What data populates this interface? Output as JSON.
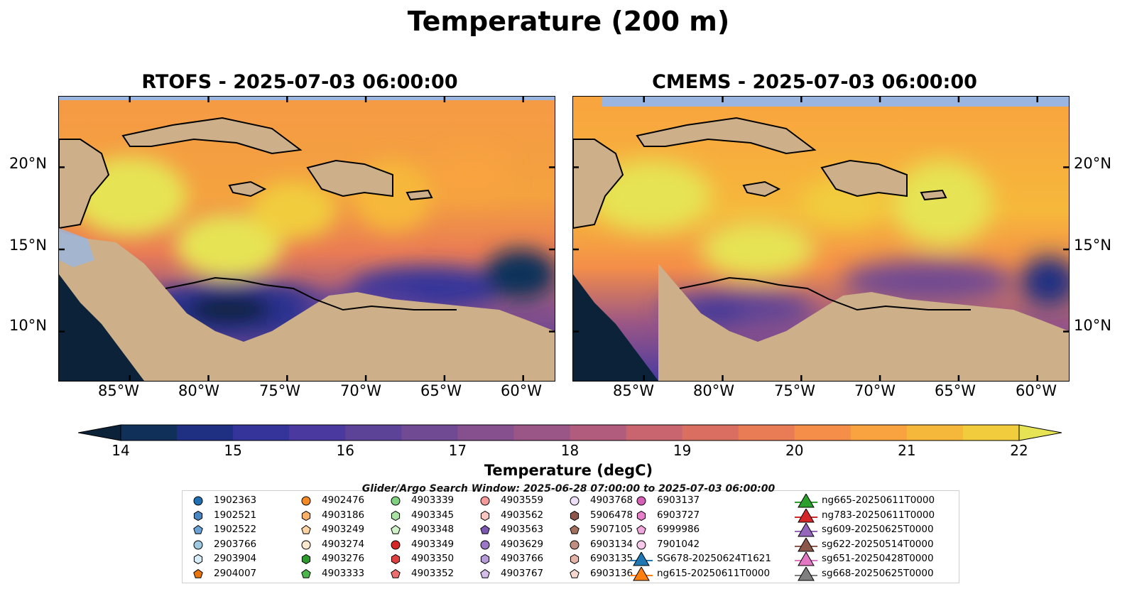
{
  "title": "Temperature (200 m)",
  "panels": [
    {
      "id": "rtofs",
      "title": "RTOFS - 2025-07-03 06:00:00"
    },
    {
      "id": "cmems",
      "title": "CMEMS - 2025-07-03 06:00:00"
    }
  ],
  "map_extent": {
    "lon": [
      -89.5,
      -58
    ],
    "lat": [
      7,
      24.3
    ]
  },
  "axes": {
    "lon_ticks": [
      {
        "value": -85,
        "label": "85°W"
      },
      {
        "value": -80,
        "label": "80°W"
      },
      {
        "value": -75,
        "label": "75°W"
      },
      {
        "value": -70,
        "label": "70°W"
      },
      {
        "value": -65,
        "label": "65°W"
      },
      {
        "value": -60,
        "label": "60°W"
      }
    ],
    "lat_ticks": [
      {
        "value": 20,
        "label": "20°N"
      },
      {
        "value": 15,
        "label": "15°N"
      },
      {
        "value": 10,
        "label": "10°N"
      }
    ]
  },
  "colorbar": {
    "label": "Temperature (degC)",
    "range": [
      14,
      22
    ],
    "ticks": [
      "14",
      "15",
      "16",
      "17",
      "18",
      "19",
      "20",
      "21",
      "22"
    ],
    "colors": [
      "#0b2238",
      "#10305a",
      "#1f2f82",
      "#35349a",
      "#4a3aa0",
      "#5c4398",
      "#704a93",
      "#85508d",
      "#9a5686",
      "#b15b7d",
      "#c8656f",
      "#da6f61",
      "#e97b55",
      "#f48e49",
      "#f8a33f",
      "#f6b83b",
      "#f1cd3e",
      "#e6e454"
    ],
    "land_color": "#cdb08a",
    "water_mask_color": "#9ab6e0"
  },
  "search_window": "Glider/Argo Search Window: 2025-06-28 07:00:00 to 2025-07-03 06:00:00",
  "legend": {
    "columns": [
      [
        {
          "label": "1902363",
          "marker": "circle",
          "color": "#1f6fb3"
        },
        {
          "label": "1902521",
          "marker": "hexagon",
          "color": "#4a86c2"
        },
        {
          "label": "1902522",
          "marker": "pentagon",
          "color": "#6ba3d6"
        },
        {
          "label": "2903766",
          "marker": "circle",
          "color": "#9ecae1"
        },
        {
          "label": "2903904",
          "marker": "hexagon",
          "color": "#d7ecf9"
        },
        {
          "label": "2904007",
          "marker": "pentagon",
          "color": "#e8750e"
        }
      ],
      [
        {
          "label": "4902476",
          "marker": "circle",
          "color": "#f58a24"
        },
        {
          "label": "4903186",
          "marker": "hexagon",
          "color": "#fbb069"
        },
        {
          "label": "4903249",
          "marker": "pentagon",
          "color": "#fdd3a4"
        },
        {
          "label": "4903274",
          "marker": "circle",
          "color": "#fde7cf"
        },
        {
          "label": "4903276",
          "marker": "hexagon",
          "color": "#2d9a2d"
        },
        {
          "label": "4903333",
          "marker": "pentagon",
          "color": "#4cb84c"
        }
      ],
      [
        {
          "label": "4903339",
          "marker": "circle",
          "color": "#7fd07f"
        },
        {
          "label": "4903345",
          "marker": "hexagon",
          "color": "#a9e3a3"
        },
        {
          "label": "4903348",
          "marker": "pentagon",
          "color": "#d0f2c9"
        },
        {
          "label": "4903349",
          "marker": "circle",
          "color": "#d62728"
        },
        {
          "label": "4903350",
          "marker": "hexagon",
          "color": "#e0403f"
        },
        {
          "label": "4903352",
          "marker": "pentagon",
          "color": "#ed6e6e"
        }
      ],
      [
        {
          "label": "4903559",
          "marker": "circle",
          "color": "#f59a98"
        },
        {
          "label": "4903562",
          "marker": "hexagon",
          "color": "#fcc6c2"
        },
        {
          "label": "4903563",
          "marker": "pentagon",
          "color": "#7d58b3"
        },
        {
          "label": "4903629",
          "marker": "circle",
          "color": "#9a78c6"
        },
        {
          "label": "4903766",
          "marker": "hexagon",
          "color": "#b79ad8"
        },
        {
          "label": "4903767",
          "marker": "pentagon",
          "color": "#d4bfe9"
        }
      ],
      [
        {
          "label": "4903768",
          "marker": "circle",
          "color": "#ecdff7"
        },
        {
          "label": "5906478",
          "marker": "hexagon",
          "color": "#8c564b"
        },
        {
          "label": "5907105",
          "marker": "pentagon",
          "color": "#a3705f"
        },
        {
          "label": "6903134",
          "marker": "circle",
          "color": "#c08e80"
        },
        {
          "label": "6903135",
          "marker": "hexagon",
          "color": "#e2b3a6"
        },
        {
          "label": "6903136",
          "marker": "pentagon",
          "color": "#f6d8cf"
        }
      ],
      [
        {
          "label": "6903137",
          "marker": "circle",
          "color": "#d65fb7"
        },
        {
          "label": "6903727",
          "marker": "hexagon",
          "color": "#e77fcb"
        },
        {
          "label": "6999986",
          "marker": "pentagon",
          "color": "#f2a7dc"
        },
        {
          "label": "7901042",
          "marker": "circle",
          "color": "#f8c9ea"
        },
        {
          "label": "SG678-20250624T1621",
          "marker": "triangle",
          "color": "#1f77b4"
        },
        {
          "label": "ng615-20250611T0000",
          "marker": "triangle",
          "color": "#ff7f0e"
        }
      ],
      [
        {
          "label": "ng665-20250611T0000",
          "marker": "triangle",
          "color": "#2ca02c"
        },
        {
          "label": "ng783-20250611T0000",
          "marker": "triangle",
          "color": "#d62728"
        },
        {
          "label": "sg609-20250625T0000",
          "marker": "triangle",
          "color": "#9467bd"
        },
        {
          "label": "sg622-20250514T0000",
          "marker": "triangle",
          "color": "#8c564b"
        },
        {
          "label": "sg651-20250428T0000",
          "marker": "triangle",
          "color": "#e377c2"
        },
        {
          "label": "sg668-20250625T0000",
          "marker": "triangle",
          "color": "#7f7f7f"
        }
      ]
    ]
  }
}
